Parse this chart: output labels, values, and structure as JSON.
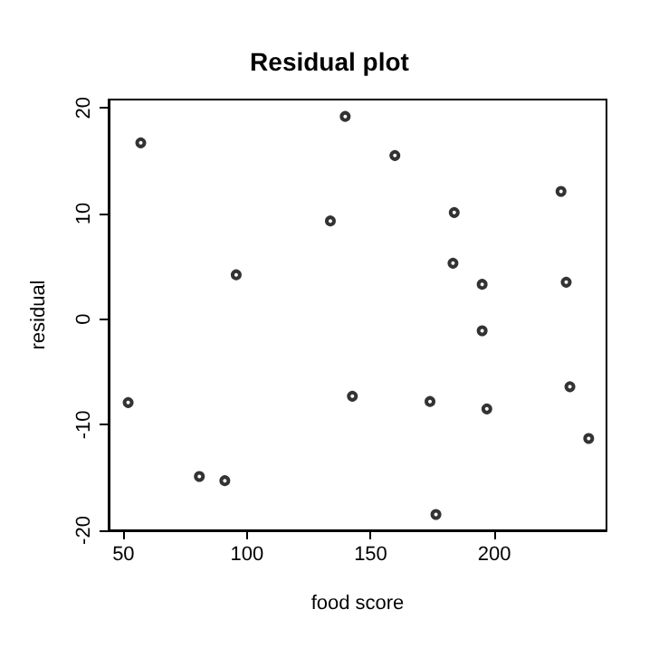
{
  "chart_data": {
    "type": "scatter",
    "title": "Residual plot",
    "xlabel": "food score",
    "ylabel": "residual",
    "x": [
      57,
      51.9,
      80.7,
      91,
      95.6,
      133.7,
      139.7,
      142.6,
      159.8,
      176.4,
      174,
      183.3,
      183.8,
      195.1,
      195.1,
      197,
      227,
      229.1,
      230.6,
      238.2
    ],
    "values": [
      16.7,
      -7.9,
      -14.9,
      -15.3,
      4.2,
      9.3,
      19.2,
      -7.3,
      15.5,
      -18.5,
      -7.8,
      5.3,
      10.1,
      3.3,
      -1.1,
      -8.5,
      12.1,
      3.5,
      -6.4,
      -11.3
    ],
    "color": "#000000",
    "marker": "circle",
    "grid": false,
    "xlim": [
      44,
      245.4
    ],
    "ylim": [
      -20,
      20.8
    ],
    "xticks": [
      50,
      100,
      150,
      200
    ],
    "yticks": [
      -20,
      -10,
      0,
      10,
      20
    ]
  }
}
